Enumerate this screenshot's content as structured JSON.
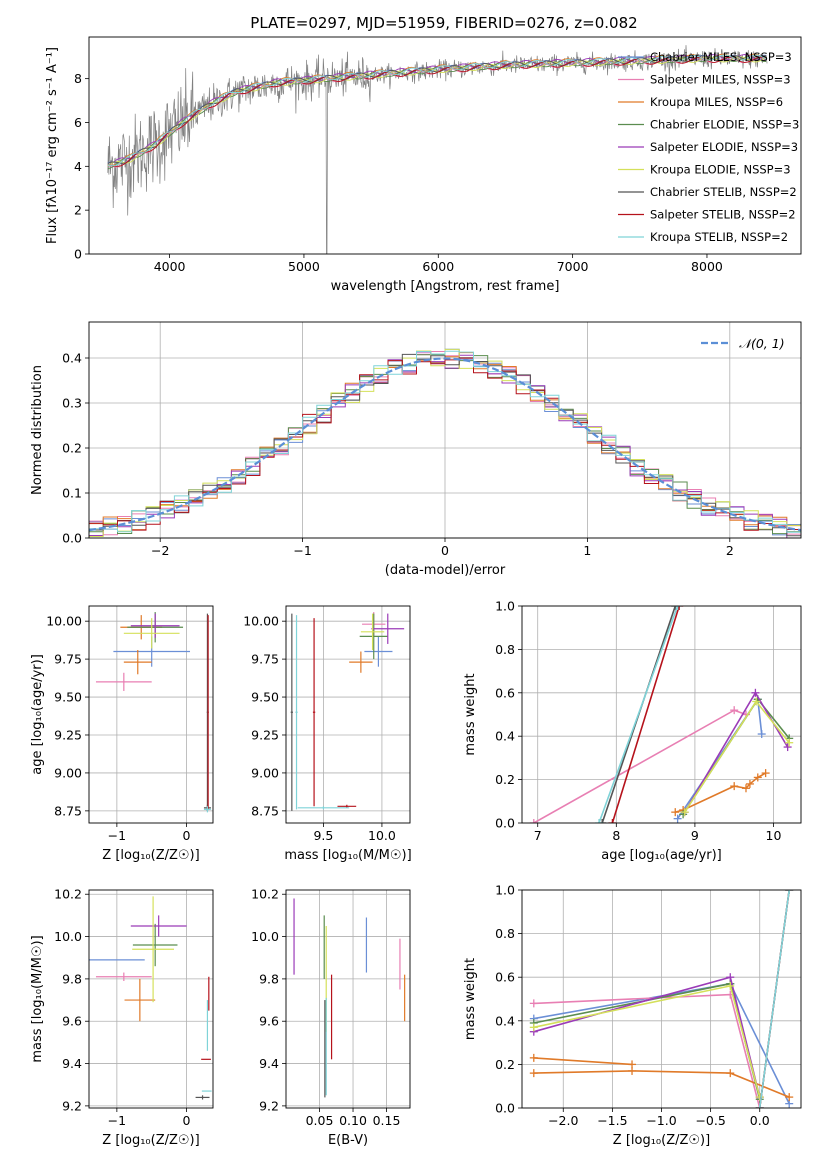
{
  "title": "PLATE=0297, MJD=51959, FIBERID=0276, z=0.082",
  "colors": {
    "Chabrier MILES": "#6b8fd6",
    "Salpeter MILES": "#e87fb3",
    "Kroupa MILES": "#e07a29",
    "Chabrier ELODIE": "#5b8d4f",
    "Salpeter ELODIE": "#9b3bb8",
    "Kroupa ELODIE": "#d4e05a",
    "Chabrier STELIB": "#555555",
    "Salpeter STELIB": "#b5121b",
    "Kroupa STELIB": "#7fd3d8",
    "data": "#808080"
  },
  "chart_data": [
    {
      "id": "spectrum",
      "type": "line",
      "xlabel": "wavelength [Angstrom, rest frame]",
      "ylabel": "Flux [fλ10⁻¹⁷ erg cm⁻² s⁻¹ A⁻¹]",
      "xlim": [
        3400,
        8700
      ],
      "ylim": [
        0,
        9.9
      ],
      "xticks": [
        4000,
        5000,
        6000,
        7000,
        8000
      ],
      "yticks": [
        0,
        2,
        4,
        6,
        8
      ],
      "grid": false,
      "legend_position": "right",
      "legend": [
        {
          "model": "Chabrier MILES",
          "label": "Chabrier MILES, NSSP=3"
        },
        {
          "model": "Salpeter MILES",
          "label": "Salpeter MILES, NSSP=3"
        },
        {
          "model": "Kroupa MILES",
          "label": "Kroupa MILES, NSSP=6"
        },
        {
          "model": "Chabrier ELODIE",
          "label": "Chabrier ELODIE, NSSP=3"
        },
        {
          "model": "Salpeter ELODIE",
          "label": "Salpeter ELODIE, NSSP=3"
        },
        {
          "model": "Kroupa ELODIE",
          "label": "Kroupa ELODIE, NSSP=3"
        },
        {
          "model": "Chabrier STELIB",
          "label": "Chabrier STELIB, NSSP=2"
        },
        {
          "model": "Salpeter STELIB",
          "label": "Salpeter STELIB, NSSP=2"
        },
        {
          "model": "Kroupa STELIB",
          "label": "Kroupa STELIB, NSSP=2"
        }
      ],
      "continuum_x": [
        3540,
        3700,
        3900,
        4100,
        4300,
        4500,
        4800,
        5200,
        5600,
        6000,
        6500,
        7000,
        7500,
        8000,
        8400
      ],
      "continuum_y": [
        4.0,
        4.3,
        5.0,
        6.0,
        6.8,
        7.4,
        7.8,
        8.0,
        8.2,
        8.4,
        8.6,
        8.7,
        8.8,
        8.9,
        8.9
      ]
    },
    {
      "id": "residuals",
      "type": "area",
      "xlabel": "(data-model)/error",
      "ylabel": "Normed distribution",
      "xlim": [
        -2.5,
        2.5
      ],
      "ylim": [
        0,
        0.48
      ],
      "xticks": [
        -2,
        -1,
        0,
        1,
        2
      ],
      "yticks": [
        0.0,
        0.1,
        0.2,
        0.3,
        0.4
      ],
      "grid": true,
      "legend_position": "top-right",
      "legend_label": "𝒩(0, 1)",
      "bin_width": 0.1
    },
    {
      "id": "age-vs-Z",
      "type": "scatter",
      "xlabel": "Z [log₁₀(Z/Z☉)]",
      "ylabel": "age  [log₁₀(age/yr)]",
      "xlim": [
        -1.4,
        0.38
      ],
      "ylim": [
        8.67,
        10.1
      ],
      "xticks": [
        -1,
        0
      ],
      "yticks": [
        8.75,
        9.0,
        9.25,
        9.5,
        9.75,
        10.0
      ],
      "grid": true,
      "points": [
        {
          "model": "Chabrier MILES",
          "x": -0.5,
          "y": 9.8,
          "xerr": 0.55,
          "yerr": 0.1
        },
        {
          "model": "Salpeter MILES",
          "x": -0.9,
          "y": 9.6,
          "xerr": 0.4,
          "yerr": 0.06
        },
        {
          "model": "Kroupa MILES",
          "x": -0.7,
          "y": 9.73,
          "xerr": 0.2,
          "yerr": 0.08
        },
        {
          "model": "Kroupa MILES",
          "x": -0.65,
          "y": 9.96,
          "xerr": 0.3,
          "yerr": 0.08
        },
        {
          "model": "Chabrier ELODIE",
          "x": -0.45,
          "y": 9.96,
          "xerr": 0.4,
          "yerr": 0.1
        },
        {
          "model": "Salpeter ELODIE",
          "x": -0.45,
          "y": 9.97,
          "xerr": 0.35,
          "yerr": 0.08
        },
        {
          "model": "Kroupa ELODIE",
          "x": -0.5,
          "y": 9.92,
          "xerr": 0.4,
          "yerr": 0.1
        },
        {
          "model": "Chabrier STELIB",
          "x": 0.3,
          "y": 8.77,
          "xerr": 0.05,
          "yerr": 0.02
        },
        {
          "model": "Chabrier STELIB",
          "x": 0.3,
          "y": 9.4,
          "xerr": 0.01,
          "yerr": 0.65
        },
        {
          "model": "Salpeter STELIB",
          "x": 0.31,
          "y": 9.4,
          "xerr": 0.01,
          "yerr": 0.64
        },
        {
          "model": "Kroupa STELIB",
          "x": 0.3,
          "y": 8.76,
          "xerr": 0.05,
          "yerr": 0.02
        }
      ]
    },
    {
      "id": "age-vs-mass",
      "type": "scatter",
      "xlabel": "mass [log₁₀(M/M☉)]",
      "ylabel": "",
      "xlim": [
        9.18,
        10.24
      ],
      "ylim": [
        8.67,
        10.1
      ],
      "xticks": [
        9.5,
        10.0
      ],
      "yticks": [
        8.75,
        9.0,
        9.25,
        9.5,
        9.75,
        10.0
      ],
      "grid": true,
      "points": [
        {
          "model": "Chabrier MILES",
          "x": 9.97,
          "y": 9.8,
          "xerr": 0.12,
          "yerr": 0.1
        },
        {
          "model": "Salpeter MILES",
          "x": 9.93,
          "y": 9.98,
          "xerr": 0.1,
          "yerr": 0.08
        },
        {
          "model": "Kroupa MILES",
          "x": 9.82,
          "y": 9.73,
          "xerr": 0.1,
          "yerr": 0.07
        },
        {
          "model": "Chabrier ELODIE",
          "x": 9.93,
          "y": 9.9,
          "xerr": 0.12,
          "yerr": 0.15
        },
        {
          "model": "Salpeter ELODIE",
          "x": 10.05,
          "y": 9.95,
          "xerr": 0.14,
          "yerr": 0.1
        },
        {
          "model": "Kroupa ELODIE",
          "x": 9.92,
          "y": 9.93,
          "xerr": 0.1,
          "yerr": 0.12
        },
        {
          "model": "Chabrier STELIB",
          "x": 9.23,
          "y": 9.4,
          "xerr": 0.01,
          "yerr": 0.65
        },
        {
          "model": "Salpeter STELIB",
          "x": 9.42,
          "y": 9.4,
          "xerr": 0.01,
          "yerr": 0.62
        },
        {
          "model": "Salpeter STELIB",
          "x": 9.7,
          "y": 8.78,
          "xerr": 0.08,
          "yerr": 0.01
        },
        {
          "model": "Kroupa STELIB",
          "x": 9.27,
          "y": 9.4,
          "xerr": 0.01,
          "yerr": 0.64
        },
        {
          "model": "Kroupa STELIB",
          "x": 9.5,
          "y": 8.77,
          "xerr": 0.22,
          "yerr": 0.01
        }
      ]
    },
    {
      "id": "mass-weight-vs-age",
      "type": "line",
      "xlabel": "age  [log₁₀(age/yr)]",
      "ylabel": "mass weight",
      "xlim": [
        6.8,
        10.35
      ],
      "ylim": [
        0,
        1.0
      ],
      "xticks": [
        7,
        8,
        9,
        10
      ],
      "yticks": [
        0.0,
        0.2,
        0.4,
        0.6,
        0.8,
        1.0
      ],
      "grid": true,
      "series": [
        {
          "model": "Chabrier MILES",
          "x": [
            8.78,
            9.8,
            9.85
          ],
          "y": [
            0.02,
            0.57,
            0.41
          ]
        },
        {
          "model": "Salpeter MILES",
          "x": [
            6.95,
            9.5,
            9.65
          ],
          "y": [
            0.0,
            0.52,
            0.5
          ]
        },
        {
          "model": "Kroupa MILES",
          "x": [
            8.75,
            8.85,
            9.5,
            9.65,
            9.7,
            9.8,
            9.9
          ],
          "y": [
            0.05,
            0.06,
            0.17,
            0.16,
            0.18,
            0.21,
            0.23
          ]
        },
        {
          "model": "Chabrier ELODIE",
          "x": [
            8.85,
            9.8,
            10.2
          ],
          "y": [
            0.04,
            0.57,
            0.39
          ]
        },
        {
          "model": "Salpeter ELODIE",
          "x": [
            8.87,
            9.77,
            10.18
          ],
          "y": [
            0.05,
            0.6,
            0.35
          ]
        },
        {
          "model": "Kroupa ELODIE",
          "x": [
            8.87,
            9.78,
            10.2
          ],
          "y": [
            0.05,
            0.56,
            0.37
          ]
        },
        {
          "model": "Chabrier STELIB",
          "x": [
            7.82,
            8.75
          ],
          "y": [
            0.0,
            1.0
          ]
        },
        {
          "model": "Salpeter STELIB",
          "x": [
            7.95,
            8.8
          ],
          "y": [
            0.0,
            1.0
          ]
        },
        {
          "model": "Kroupa STELIB",
          "x": [
            7.78,
            8.78
          ],
          "y": [
            0.0,
            1.0
          ]
        }
      ]
    },
    {
      "id": "mass-vs-Z",
      "type": "scatter",
      "xlabel": "Z [log₁₀(Z/Z☉)]",
      "ylabel": "mass [log₁₀(M/M☉)]",
      "xlim": [
        -1.4,
        0.38
      ],
      "ylim": [
        9.19,
        10.22
      ],
      "xticks": [
        -1,
        0
      ],
      "yticks": [
        9.2,
        9.4,
        9.6,
        9.8,
        10.0,
        10.2
      ],
      "grid": true,
      "points": [
        {
          "model": "Chabrier MILES",
          "x": -1.0,
          "y": 9.89,
          "xerr": 0.4,
          "yerr": 0.0
        },
        {
          "model": "Salpeter MILES",
          "x": -0.9,
          "y": 9.81,
          "xerr": 0.4,
          "yerr": 0.02
        },
        {
          "model": "Kroupa MILES",
          "x": -0.67,
          "y": 9.7,
          "xerr": 0.22,
          "yerr": 0.1
        },
        {
          "model": "Chabrier ELODIE",
          "x": -0.45,
          "y": 9.96,
          "xerr": 0.32,
          "yerr": 0.1
        },
        {
          "model": "Salpeter ELODIE",
          "x": -0.4,
          "y": 10.05,
          "xerr": 0.4,
          "yerr": 0.05
        },
        {
          "model": "Kroupa ELODIE",
          "x": -0.48,
          "y": 9.94,
          "xerr": 0.3,
          "yerr": 0.25
        },
        {
          "model": "Chabrier STELIB",
          "x": 0.23,
          "y": 9.24,
          "xerr": 0.1,
          "yerr": 0.01
        },
        {
          "model": "Salpeter STELIB",
          "x": 0.28,
          "y": 9.42,
          "xerr": 0.07,
          "yerr": 0.0
        },
        {
          "model": "Salpeter STELIB",
          "x": 0.32,
          "y": 9.73,
          "xerr": 0.0,
          "yerr": 0.08
        },
        {
          "model": "Kroupa STELIB",
          "x": 0.29,
          "y": 9.27,
          "xerr": 0.07,
          "yerr": 0.0
        },
        {
          "model": "Kroupa STELIB",
          "x": 0.3,
          "y": 9.58,
          "xerr": 0.0,
          "yerr": 0.12
        }
      ]
    },
    {
      "id": "mass-vs-EBV",
      "type": "scatter",
      "xlabel": "E(B-V)",
      "ylabel": "",
      "xlim": [
        0.0,
        0.185
      ],
      "ylim": [
        9.19,
        10.22
      ],
      "xticks": [
        0.05,
        0.1,
        0.15
      ],
      "yticks": [
        9.2,
        9.4,
        9.6,
        9.8,
        10.0,
        10.2
      ],
      "grid": true,
      "points": [
        {
          "model": "Chabrier MILES",
          "x": 0.12,
          "y": 9.96,
          "xerr": 0.0,
          "yerr": 0.13
        },
        {
          "model": "Salpeter MILES",
          "x": 0.17,
          "y": 9.87,
          "xerr": 0.0,
          "yerr": 0.12
        },
        {
          "model": "Kroupa MILES",
          "x": 0.177,
          "y": 9.71,
          "xerr": 0.0,
          "yerr": 0.11
        },
        {
          "model": "Chabrier ELODIE",
          "x": 0.057,
          "y": 9.95,
          "xerr": 0.0,
          "yerr": 0.15
        },
        {
          "model": "Salpeter ELODIE",
          "x": 0.012,
          "y": 10.0,
          "xerr": 0.0,
          "yerr": 0.18
        },
        {
          "model": "Kroupa ELODIE",
          "x": 0.06,
          "y": 9.8,
          "xerr": 0.0,
          "yerr": 0.25
        },
        {
          "model": "Chabrier STELIB",
          "x": 0.058,
          "y": 9.47,
          "xerr": 0.0,
          "yerr": 0.23
        },
        {
          "model": "Salpeter STELIB",
          "x": 0.068,
          "y": 9.62,
          "xerr": 0.0,
          "yerr": 0.2
        },
        {
          "model": "Kroupa STELIB",
          "x": 0.06,
          "y": 9.48,
          "xerr": 0.0,
          "yerr": 0.23
        }
      ]
    },
    {
      "id": "mass-weight-vs-Z",
      "type": "line",
      "xlabel": "Z [log₁₀(Z/Z☉)]",
      "ylabel": "mass weight",
      "xlim": [
        -2.42,
        0.42
      ],
      "ylim": [
        0,
        1.0
      ],
      "xticks": [
        -2.0,
        -1.5,
        -1.0,
        -0.5,
        0.0
      ],
      "yticks": [
        0.0,
        0.2,
        0.4,
        0.6,
        0.8,
        1.0
      ],
      "grid": true,
      "series": [
        {
          "model": "Chabrier MILES",
          "x": [
            -2.3,
            -0.3,
            0.3
          ],
          "y": [
            0.41,
            0.57,
            0.02
          ]
        },
        {
          "model": "Salpeter MILES",
          "x": [
            -2.3,
            -0.3,
            0.0
          ],
          "y": [
            0.48,
            0.52,
            0.0
          ]
        },
        {
          "model": "Kroupa MILES",
          "x": [
            -2.3,
            -1.3,
            -0.3,
            0.3
          ],
          "y": [
            0.16,
            0.17,
            0.16,
            0.05
          ]
        },
        {
          "model": "Kroupa MILES",
          "x": [
            -2.3,
            -1.3
          ],
          "y": [
            0.23,
            0.2
          ]
        },
        {
          "model": "Chabrier ELODIE",
          "x": [
            -2.3,
            -0.3,
            0.0
          ],
          "y": [
            0.39,
            0.57,
            0.04
          ]
        },
        {
          "model": "Salpeter ELODIE",
          "x": [
            -2.3,
            -0.3,
            0.0
          ],
          "y": [
            0.35,
            0.6,
            0.05
          ]
        },
        {
          "model": "Kroupa ELODIE",
          "x": [
            -2.3,
            -0.3,
            0.0
          ],
          "y": [
            0.37,
            0.56,
            0.05
          ]
        },
        {
          "model": "Chabrier STELIB",
          "x": [
            0.0,
            0.3
          ],
          "y": [
            0.0,
            1.0
          ]
        },
        {
          "model": "Salpeter STELIB",
          "x": [
            0.0,
            0.3
          ],
          "y": [
            0.0,
            1.0
          ]
        },
        {
          "model": "Kroupa STELIB",
          "x": [
            0.0,
            0.3
          ],
          "y": [
            0.0,
            1.0
          ]
        }
      ]
    }
  ]
}
